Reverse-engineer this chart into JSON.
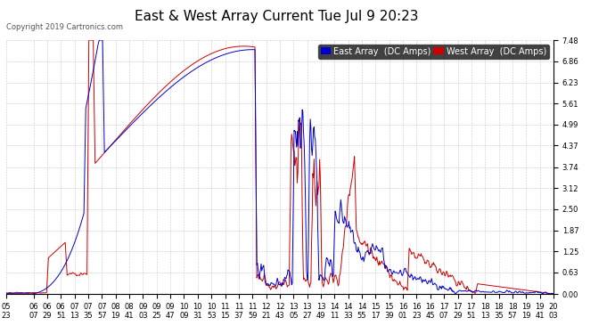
{
  "title": "East & West Array Current Tue Jul 9 20:23",
  "copyright": "Copyright 2019 Cartronics.com",
  "east_label": "East Array  (DC Amps)",
  "west_label": "West Array  (DC Amps)",
  "east_color": "#0000cc",
  "west_color": "#cc0000",
  "background_color": "#ffffff",
  "grid_color": "#bbbbbb",
  "ylim": [
    0.0,
    7.48
  ],
  "yticks": [
    0.0,
    0.63,
    1.25,
    1.87,
    2.5,
    3.12,
    3.74,
    4.37,
    4.99,
    5.61,
    6.23,
    6.86,
    7.48
  ],
  "title_fontsize": 11,
  "tick_fontsize": 6,
  "legend_fontsize": 7,
  "xtick_labels": [
    "05:23",
    "06:07",
    "06:29",
    "06:51",
    "07:13",
    "07:35",
    "07:57",
    "08:19",
    "08:41",
    "09:03",
    "09:25",
    "09:47",
    "10:09",
    "10:31",
    "10:53",
    "11:15",
    "11:37",
    "11:59",
    "12:21",
    "12:43",
    "13:05",
    "13:27",
    "13:49",
    "14:11",
    "14:33",
    "14:55",
    "15:17",
    "15:39",
    "16:01",
    "16:23",
    "16:45",
    "17:07",
    "17:29",
    "17:51",
    "18:13",
    "18:35",
    "18:57",
    "19:19",
    "19:41",
    "20:03"
  ]
}
